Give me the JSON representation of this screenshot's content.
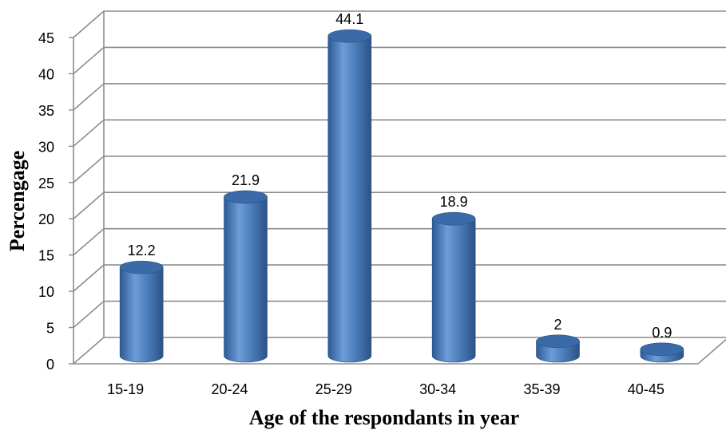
{
  "chart_data": {
    "type": "bar",
    "style": "3d-cylinder",
    "title": "",
    "xlabel": "Age of the respondants in year",
    "ylabel": "Percengage",
    "categories": [
      "15-19",
      "20-24",
      "25-29",
      "30-34",
      "35-39",
      "40-45"
    ],
    "values": [
      12.2,
      21.9,
      44.1,
      18.9,
      2,
      0.9
    ],
    "data_labels": [
      "12.2",
      "21.9",
      "44.1",
      "18.9",
      "2",
      "0.9"
    ],
    "ylim": [
      0,
      45
    ],
    "yticks": [
      "0",
      "5",
      "10",
      "15",
      "20",
      "25",
      "30",
      "35",
      "40",
      "45"
    ],
    "grid": true,
    "legend": "none",
    "colors": {
      "bar": "#4f81bd",
      "bar_dark": "#2c5a94",
      "bar_light": "#7aa6dc",
      "bar_top": "#3a6aa8",
      "grid": "#8c8c8c",
      "axis": "#7f7f7f"
    }
  }
}
